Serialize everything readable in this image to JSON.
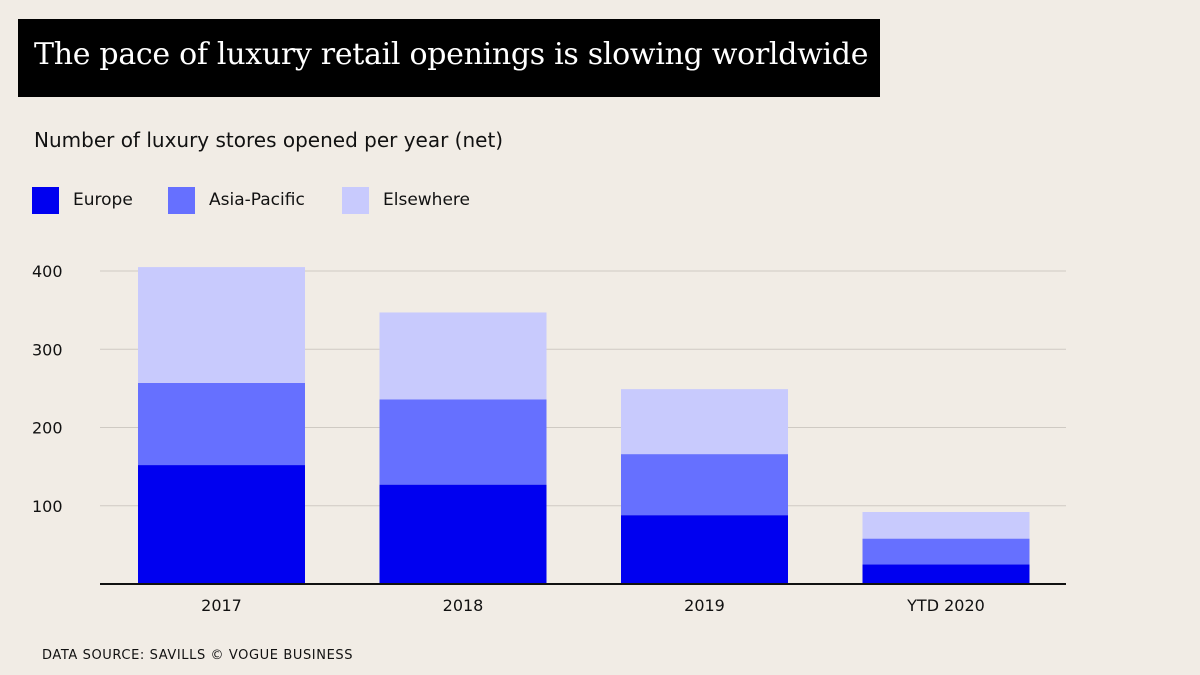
{
  "title": "The pace of luxury retail openings is slowing worldwide",
  "subtitle": "Number of luxury stores opened per year (net)",
  "source": "DATA SOURCE: SAVILLS © VOGUE BUSINESS",
  "colors": {
    "background": "#f1ece5",
    "europe": "#0000f0",
    "asia_pacific": "#6670ff",
    "elsewhere": "#c8cafd",
    "gridline": "#cfcac3",
    "axis": "#111111"
  },
  "legend": [
    {
      "label": "Europe",
      "color": "#0000f0"
    },
    {
      "label": "Asia-Pacific",
      "color": "#6670ff"
    },
    {
      "label": "Elsewhere",
      "color": "#c8cafd"
    }
  ],
  "chart_data": {
    "type": "bar",
    "stacked": true,
    "title": "The pace of luxury retail openings is slowing worldwide",
    "subtitle": "Number of luxury stores opened per year (net)",
    "xlabel": "",
    "ylabel": "",
    "categories": [
      "2017",
      "2018",
      "2019",
      "YTD  2020"
    ],
    "series": [
      {
        "name": "Europe",
        "values": [
          152,
          127,
          88,
          25
        ]
      },
      {
        "name": "Asia-Pacific",
        "values": [
          105,
          109,
          78,
          33
        ]
      },
      {
        "name": "Elsewhere",
        "values": [
          148,
          111,
          83,
          34
        ]
      }
    ],
    "ylim": [
      0,
      400
    ],
    "yticks": [
      "100",
      "200",
      "300",
      "400"
    ],
    "ytick_values": [
      100,
      200,
      300,
      400
    ],
    "grid": true,
    "legend_position": "top-left"
  }
}
